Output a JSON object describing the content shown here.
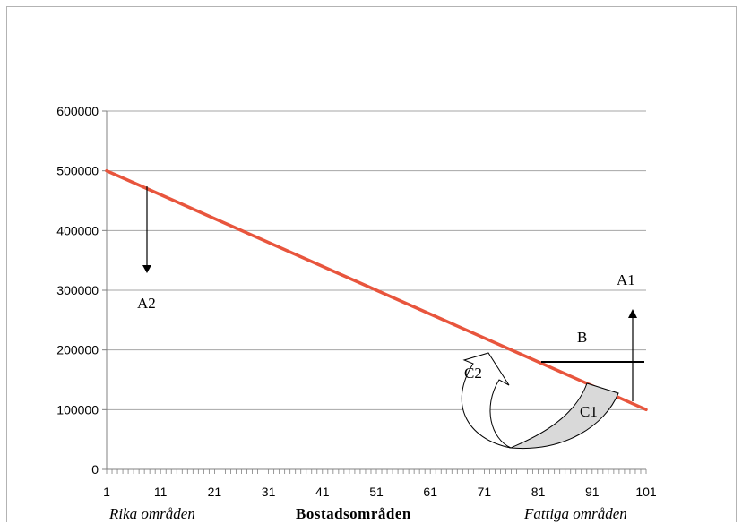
{
  "chart_data": {
    "type": "line",
    "title": "",
    "xlabel": "Bostadsområden",
    "ylabel": "",
    "x_range": [
      1,
      101
    ],
    "ylim": [
      0,
      600000
    ],
    "y_ticks": [
      0,
      100000,
      200000,
      300000,
      400000,
      500000,
      600000
    ],
    "x_ticks": [
      1,
      11,
      21,
      31,
      41,
      51,
      61,
      71,
      81,
      91,
      101
    ],
    "grid": "horizontal",
    "series": [
      {
        "color": "#e8553d",
        "x": [
          1,
          101
        ],
        "y": [
          500000,
          100000
        ]
      }
    ],
    "x_sublabels": {
      "left": "Rika områden",
      "right": "Fattiga områden"
    },
    "annotations": {
      "a2": "A2",
      "a1": "A1",
      "b": "B",
      "c1": "C1",
      "c2": "C2"
    }
  },
  "colors": {
    "line": "#e8553d",
    "grid": "#a6a6a6",
    "arrow_fill": "#d9d9d9"
  }
}
